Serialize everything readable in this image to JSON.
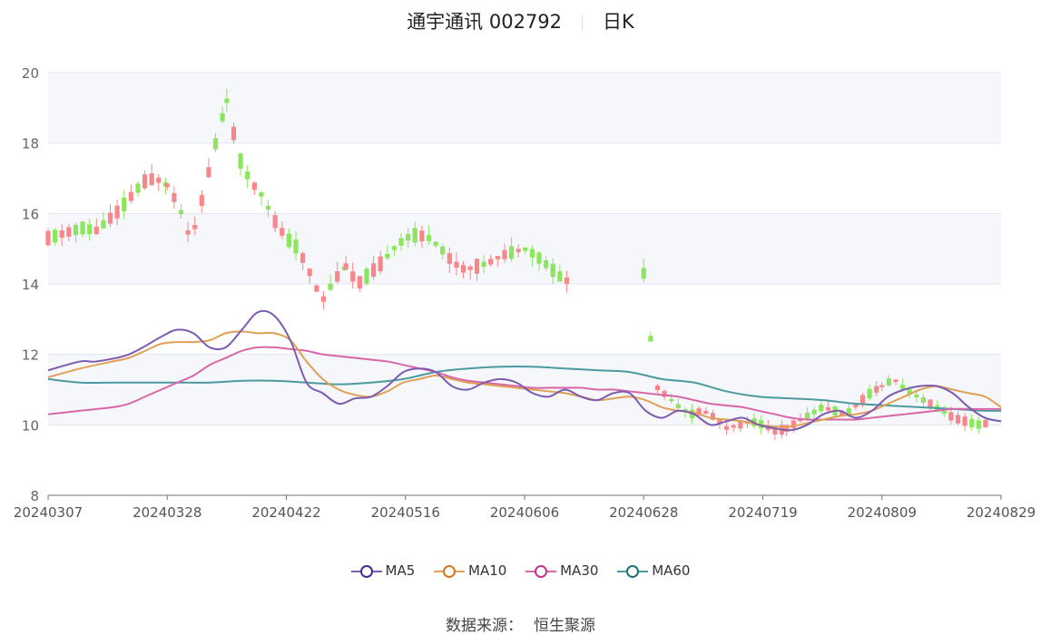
{
  "title": {
    "stock": "通宇通讯 002792",
    "period": "日K"
  },
  "source": {
    "label": "数据来源：",
    "name": "恒生聚源"
  },
  "colors": {
    "up": "#f7878a",
    "down": "#8be65e",
    "ma5": "#7b5cb0",
    "ma10": "#e0a055",
    "ma30": "#d966a8",
    "ma60": "#4c9aa0"
  },
  "chart_data": {
    "type": "candlestick",
    "y_ticks": [
      "8",
      "10",
      "12",
      "14",
      "16",
      "18",
      "20"
    ],
    "ylim": [
      8,
      20
    ],
    "x_ticks": [
      "20240307",
      "20240328",
      "20240422",
      "20240516",
      "20240606",
      "20240628",
      "20240719",
      "20240809",
      "20240829"
    ],
    "legend": [
      "MA5",
      "MA10",
      "MA30",
      "MA60"
    ],
    "segments": [
      {
        "from": 0,
        "to": 10,
        "prices": [
          15.3,
          15.4,
          15.5,
          15.6,
          15.5,
          15.8,
          16.1,
          16.5,
          16.9,
          17.0,
          16.8
        ]
      },
      {
        "from": 10,
        "to": 15,
        "prices": [
          16.8,
          16.2,
          15.2,
          16.5,
          17.9,
          19.2
        ]
      },
      {
        "from": 15,
        "to": 25,
        "prices": [
          19.2,
          17.6,
          16.9,
          16.5,
          15.8,
          15.3,
          15.0,
          14.3,
          13.5,
          14.1,
          14.5
        ]
      },
      {
        "from": 25,
        "to": 36,
        "prices": [
          14.5,
          14.0,
          14.3,
          14.6,
          15.0,
          15.3,
          15.4,
          15.3,
          15.0,
          14.6,
          14.4,
          14.5
        ]
      },
      {
        "from": 36,
        "to": 50,
        "prices": [
          14.5,
          14.6,
          14.8,
          14.9,
          15.0,
          14.8,
          14.5,
          14.2,
          14.0,
          14.3,
          14.8,
          14.7,
          14.2,
          14.0,
          14.3
        ]
      },
      {
        "from": 50,
        "to": 62,
        "prices": [
          14.3,
          11.1,
          10.8,
          10.5,
          10.3,
          10.4,
          10.2,
          9.9,
          10.0,
          10.1,
          10.0,
          9.8,
          9.9
        ]
      },
      {
        "from": 62,
        "to": 70,
        "prices": [
          9.9,
          10.1,
          10.3,
          10.5,
          10.4,
          10.3,
          10.6,
          10.9,
          11.1
        ]
      },
      {
        "from": 70,
        "to": 79,
        "prices": [
          11.1,
          11.3,
          11.0,
          10.8,
          10.6,
          10.4,
          10.2,
          10.1,
          10.0,
          10.05
        ]
      }
    ],
    "gap_days": [
      44,
      45,
      46,
      47,
      48,
      49
    ],
    "ma5": [
      [
        0,
        11.55
      ],
      [
        2,
        11.8
      ],
      [
        3,
        11.8
      ],
      [
        5,
        12.0
      ],
      [
        7,
        12.5
      ],
      [
        8,
        12.7
      ],
      [
        9,
        12.6
      ],
      [
        10,
        12.2
      ],
      [
        11,
        12.2
      ],
      [
        12,
        12.7
      ],
      [
        13,
        13.2
      ],
      [
        14,
        13.1
      ],
      [
        15,
        12.4
      ],
      [
        16,
        11.2
      ],
      [
        17,
        10.9
      ],
      [
        18,
        10.6
      ],
      [
        19,
        10.75
      ],
      [
        20,
        10.8
      ],
      [
        21,
        11.1
      ],
      [
        22,
        11.5
      ],
      [
        23,
        11.6
      ],
      [
        24,
        11.5
      ],
      [
        25,
        11.1
      ],
      [
        26,
        11.0
      ],
      [
        27,
        11.2
      ],
      [
        28,
        11.3
      ],
      [
        29,
        11.2
      ],
      [
        30,
        10.9
      ],
      [
        31,
        10.8
      ],
      [
        32,
        11.0
      ],
      [
        33,
        10.8
      ],
      [
        34,
        10.7
      ],
      [
        35,
        10.9
      ],
      [
        36,
        10.9
      ],
      [
        37,
        10.4
      ],
      [
        38,
        10.2
      ],
      [
        39,
        10.4
      ],
      [
        40,
        10.3
      ],
      [
        41,
        10.0
      ],
      [
        42,
        10.1
      ],
      [
        43,
        10.2
      ],
      [
        44,
        10.0
      ],
      [
        45,
        9.9
      ],
      [
        46,
        9.85
      ],
      [
        47,
        10.0
      ],
      [
        48,
        10.3
      ],
      [
        49,
        10.4
      ],
      [
        50,
        10.2
      ],
      [
        51,
        10.4
      ],
      [
        52,
        10.8
      ],
      [
        53,
        11.0
      ],
      [
        54,
        11.1
      ],
      [
        55,
        11.1
      ],
      [
        56,
        10.9
      ],
      [
        57,
        10.5
      ],
      [
        58,
        10.2
      ],
      [
        59,
        10.1
      ]
    ],
    "ma10": [
      [
        0,
        11.35
      ],
      [
        2,
        11.6
      ],
      [
        4,
        11.8
      ],
      [
        5,
        11.9
      ],
      [
        6,
        12.1
      ],
      [
        7,
        12.3
      ],
      [
        8,
        12.35
      ],
      [
        9,
        12.35
      ],
      [
        10,
        12.4
      ],
      [
        11,
        12.6
      ],
      [
        12,
        12.65
      ],
      [
        13,
        12.6
      ],
      [
        14,
        12.6
      ],
      [
        15,
        12.4
      ],
      [
        16,
        11.8
      ],
      [
        17,
        11.3
      ],
      [
        18,
        11.0
      ],
      [
        19,
        10.85
      ],
      [
        20,
        10.8
      ],
      [
        21,
        10.95
      ],
      [
        22,
        11.2
      ],
      [
        23,
        11.3
      ],
      [
        24,
        11.4
      ],
      [
        25,
        11.3
      ],
      [
        26,
        11.2
      ],
      [
        27,
        11.15
      ],
      [
        28,
        11.1
      ],
      [
        29,
        11.05
      ],
      [
        30,
        11.0
      ],
      [
        31,
        10.95
      ],
      [
        32,
        10.9
      ],
      [
        33,
        10.8
      ],
      [
        34,
        10.7
      ],
      [
        35,
        10.75
      ],
      [
        36,
        10.8
      ],
      [
        37,
        10.7
      ],
      [
        38,
        10.5
      ],
      [
        39,
        10.4
      ],
      [
        40,
        10.35
      ],
      [
        41,
        10.2
      ],
      [
        42,
        10.15
      ],
      [
        43,
        10.1
      ],
      [
        44,
        10.0
      ],
      [
        45,
        9.95
      ],
      [
        46,
        9.95
      ],
      [
        47,
        10.05
      ],
      [
        48,
        10.15
      ],
      [
        49,
        10.25
      ],
      [
        50,
        10.3
      ],
      [
        51,
        10.4
      ],
      [
        52,
        10.6
      ],
      [
        53,
        10.8
      ],
      [
        54,
        11.0
      ],
      [
        55,
        11.1
      ],
      [
        56,
        11.0
      ],
      [
        57,
        10.9
      ],
      [
        58,
        10.8
      ],
      [
        59,
        10.5
      ]
    ],
    "ma30": [
      [
        0,
        10.3
      ],
      [
        2,
        10.4
      ],
      [
        4,
        10.5
      ],
      [
        5,
        10.6
      ],
      [
        6,
        10.8
      ],
      [
        7,
        11.0
      ],
      [
        8,
        11.2
      ],
      [
        9,
        11.4
      ],
      [
        10,
        11.7
      ],
      [
        11,
        11.9
      ],
      [
        12,
        12.1
      ],
      [
        13,
        12.2
      ],
      [
        14,
        12.2
      ],
      [
        15,
        12.15
      ],
      [
        16,
        12.1
      ],
      [
        17,
        12.0
      ],
      [
        18,
        11.95
      ],
      [
        19,
        11.9
      ],
      [
        20,
        11.85
      ],
      [
        21,
        11.8
      ],
      [
        22,
        11.7
      ],
      [
        23,
        11.6
      ],
      [
        24,
        11.5
      ],
      [
        25,
        11.35
      ],
      [
        26,
        11.25
      ],
      [
        27,
        11.2
      ],
      [
        28,
        11.15
      ],
      [
        29,
        11.1
      ],
      [
        30,
        11.05
      ],
      [
        31,
        11.05
      ],
      [
        32,
        11.05
      ],
      [
        33,
        11.05
      ],
      [
        34,
        11.0
      ],
      [
        35,
        11.0
      ],
      [
        36,
        10.95
      ],
      [
        37,
        10.9
      ],
      [
        38,
        10.85
      ],
      [
        39,
        10.8
      ],
      [
        40,
        10.7
      ],
      [
        41,
        10.6
      ],
      [
        42,
        10.55
      ],
      [
        43,
        10.5
      ],
      [
        44,
        10.4
      ],
      [
        45,
        10.3
      ],
      [
        46,
        10.2
      ],
      [
        47,
        10.15
      ],
      [
        48,
        10.15
      ],
      [
        49,
        10.15
      ],
      [
        50,
        10.15
      ],
      [
        51,
        10.2
      ],
      [
        52,
        10.25
      ],
      [
        53,
        10.3
      ],
      [
        54,
        10.35
      ],
      [
        55,
        10.4
      ],
      [
        56,
        10.45
      ],
      [
        57,
        10.45
      ],
      [
        58,
        10.45
      ],
      [
        59,
        10.45
      ]
    ],
    "ma60": [
      [
        0,
        11.3
      ],
      [
        2,
        11.2
      ],
      [
        4,
        11.2
      ],
      [
        6,
        11.2
      ],
      [
        8,
        11.2
      ],
      [
        10,
        11.2
      ],
      [
        12,
        11.25
      ],
      [
        14,
        11.25
      ],
      [
        16,
        11.2
      ],
      [
        18,
        11.15
      ],
      [
        20,
        11.2
      ],
      [
        22,
        11.3
      ],
      [
        24,
        11.5
      ],
      [
        26,
        11.6
      ],
      [
        28,
        11.65
      ],
      [
        30,
        11.65
      ],
      [
        32,
        11.6
      ],
      [
        34,
        11.55
      ],
      [
        36,
        11.5
      ],
      [
        38,
        11.3
      ],
      [
        40,
        11.2
      ],
      [
        42,
        10.95
      ],
      [
        44,
        10.8
      ],
      [
        46,
        10.75
      ],
      [
        48,
        10.7
      ],
      [
        50,
        10.6
      ],
      [
        52,
        10.55
      ],
      [
        54,
        10.5
      ],
      [
        56,
        10.45
      ],
      [
        58,
        10.4
      ],
      [
        59,
        10.4
      ]
    ]
  }
}
